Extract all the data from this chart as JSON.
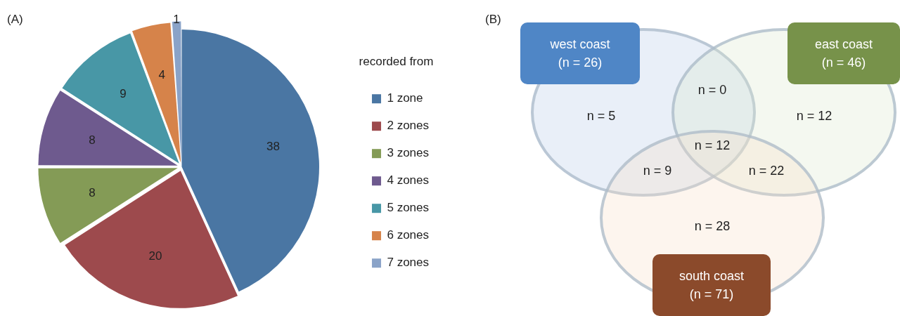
{
  "chart_data": [
    {
      "type": "pie",
      "title": "(A)",
      "legend_title": "recorded from",
      "legend": "right",
      "data_labels": true,
      "categories": [
        "1 zone",
        "2 zones",
        "3 zones",
        "4 zones",
        "5 zones",
        "6 zones",
        "7 zones"
      ],
      "values": [
        38,
        20,
        8,
        8,
        9,
        4,
        1
      ],
      "colors": [
        "#4a76a3",
        "#9d4a4d",
        "#849b56",
        "#6e5a8e",
        "#4897a6",
        "#d6834a",
        "#8aa3c8"
      ]
    },
    {
      "type": "other",
      "title": "(B)",
      "categories": [
        "west coast",
        "east coast",
        "south coast"
      ],
      "value_labels": [
        "(n  = 26)",
        "(n  = 46)",
        "(n  = 71)"
      ],
      "colors": [
        "#4f86c6",
        "#77924a",
        "#8b4a2b"
      ],
      "annotations": [
        "n = 5",
        "n = 0",
        "n = 12",
        "n = 12",
        "n = 9",
        "n = 22",
        "n = 28"
      ]
    }
  ]
}
